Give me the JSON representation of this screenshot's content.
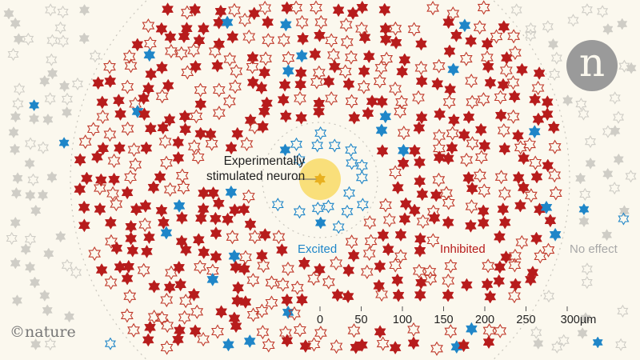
{
  "labels": {
    "stimulated": "Experimentally\nstimulated neuron",
    "stimulated_line1": "Experimentally",
    "stimulated_line2": "stimulated neuron",
    "excited": "Excited",
    "inhibited": "Inhibited",
    "no_effect": "No effect"
  },
  "scale_bar": {
    "ticks": [
      "0",
      "50",
      "100",
      "150",
      "200",
      "250",
      "300µm"
    ],
    "unit": "µm"
  },
  "logo": {
    "letter": "n",
    "copyright": "©nature"
  },
  "colors": {
    "background": "#fbf8ee",
    "excited": "#1f86c8",
    "inhibited": "#b71c1c",
    "no_effect": "#cfcdc6",
    "stimulated": "#e8b020",
    "stimulation_halo": "#f9df7a"
  }
}
